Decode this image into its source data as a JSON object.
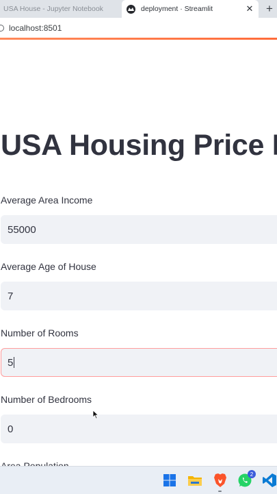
{
  "browser": {
    "tabs": [
      {
        "title": "USA House - Jupyter Notebook",
        "active": false
      },
      {
        "title": "deployment · Streamlit",
        "active": true
      }
    ],
    "close_glyph": "✕",
    "new_tab_glyph": "+",
    "url": "localhost:8501",
    "accent_color": "#ff6c3a"
  },
  "page": {
    "title": "USA Housing Price Prediction",
    "fields": [
      {
        "label": "Average Area Income",
        "value": "55000",
        "focused": false
      },
      {
        "label": "Average Age of House",
        "value": "7",
        "focused": false
      },
      {
        "label": "Number of Rooms",
        "value": "5",
        "focused": true
      },
      {
        "label": "Number of Bedrooms",
        "value": "0",
        "focused": false
      },
      {
        "label": "Area Population",
        "value": "",
        "focused": false
      }
    ]
  },
  "taskbar": {
    "apps": [
      "windows-start-icon",
      "file-explorer-icon",
      "brave-browser-icon",
      "whatsapp-icon",
      "vscode-icon"
    ],
    "whatsapp_badge": "2"
  }
}
